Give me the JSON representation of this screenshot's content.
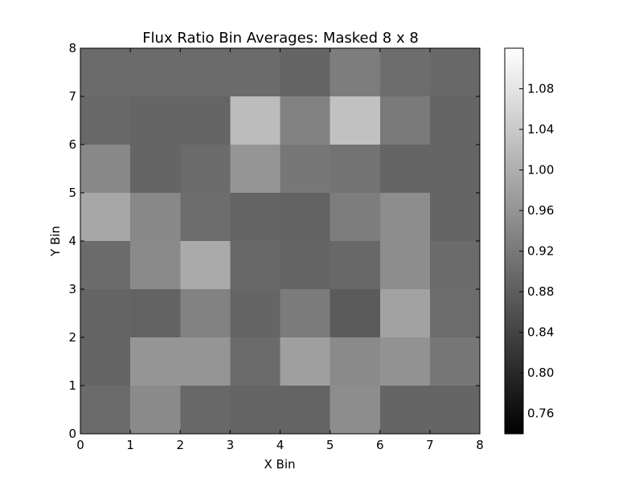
{
  "chart_data": {
    "type": "heatmap",
    "title": "Flux Ratio Bin Averages: Masked 8 x 8",
    "xlabel": "X Bin",
    "ylabel": "Y Bin",
    "xlim": [
      0,
      8
    ],
    "ylim": [
      0,
      8
    ],
    "x_ticks": [
      "0",
      "1",
      "2",
      "3",
      "4",
      "5",
      "6",
      "7",
      "8"
    ],
    "y_ticks": [
      "0",
      "1",
      "2",
      "3",
      "4",
      "5",
      "6",
      "7",
      "8"
    ],
    "colormap": "gray",
    "colorbar": {
      "vmin": 0.74,
      "vmax": 1.12,
      "ticks": [
        0.76,
        0.8,
        0.84,
        0.88,
        0.92,
        0.96,
        1.0,
        1.04,
        1.08
      ],
      "tick_labels": [
        "0.76",
        "0.80",
        "0.84",
        "0.88",
        "0.92",
        "0.96",
        "1.00",
        "1.04",
        "1.08"
      ]
    },
    "rows_bottom_to_top": [
      [
        0.899,
        0.946,
        0.895,
        0.889,
        0.889,
        0.95,
        0.891,
        0.891
      ],
      [
        0.891,
        0.962,
        0.962,
        0.899,
        0.977,
        0.946,
        0.958,
        0.918
      ],
      [
        0.891,
        0.887,
        0.934,
        0.891,
        0.923,
        0.875,
        0.981,
        0.901
      ],
      [
        0.899,
        0.946,
        0.993,
        0.895,
        0.891,
        0.895,
        0.95,
        0.899
      ],
      [
        0.989,
        0.942,
        0.903,
        0.891,
        0.887,
        0.926,
        0.95,
        0.891
      ],
      [
        0.942,
        0.891,
        0.899,
        0.962,
        0.918,
        0.911,
        0.891,
        0.891
      ],
      [
        0.895,
        0.891,
        0.891,
        1.02,
        0.934,
        1.028,
        0.922,
        0.891
      ],
      [
        0.899,
        0.899,
        0.899,
        0.899,
        0.891,
        0.926,
        0.903,
        0.895
      ]
    ]
  }
}
